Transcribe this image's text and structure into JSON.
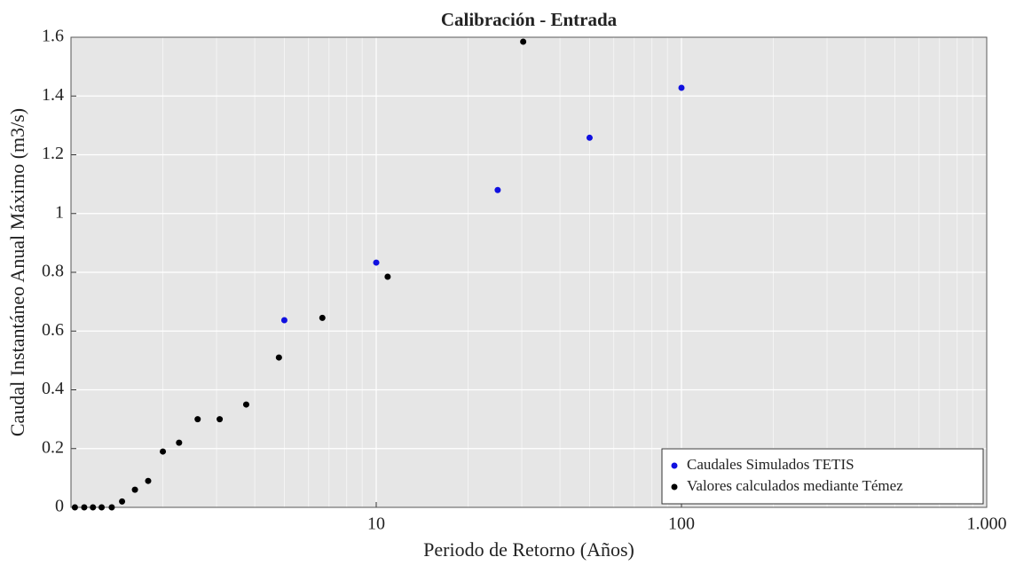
{
  "chart_data": {
    "type": "scatter",
    "title": "Calibración - Entrada",
    "x_label": "Periodo de Retorno (Años)",
    "y_label": "Caudal Instantáneo Anual Máximo (m3/s)",
    "xscale": "log",
    "grid": true,
    "minor_grid": true,
    "legend": "lower right",
    "xlim": [
      1,
      1000
    ],
    "xticks": [
      10,
      100,
      {
        "value": 1000,
        "label": "1.000"
      }
    ],
    "ylim": [
      0,
      1.6
    ],
    "yticks": [
      0,
      0.2,
      0.4,
      0.6,
      0.8,
      1,
      1.2,
      1.4,
      1.6
    ],
    "series": [
      {
        "name": "Caudales Simulados TETIS",
        "color": "#1010e0",
        "x": [
          5,
          10,
          25,
          50,
          100
        ],
        "values": [
          0.637,
          0.833,
          1.08,
          1.258,
          1.428
        ]
      },
      {
        "name": "Valores calculados mediante Témez",
        "color": "#000000",
        "x": [
          1.03,
          1.105,
          1.18,
          1.26,
          1.36,
          1.47,
          1.62,
          1.79,
          2.0,
          2.26,
          2.6,
          3.07,
          3.75,
          4.8,
          6.66,
          10.9,
          30.3
        ],
        "values": [
          0,
          0,
          0,
          0,
          0,
          0.02,
          0.06,
          0.09,
          0.19,
          0.22,
          0.3,
          0.3,
          0.35,
          0.51,
          0.645,
          0.785,
          1.585
        ]
      }
    ]
  }
}
